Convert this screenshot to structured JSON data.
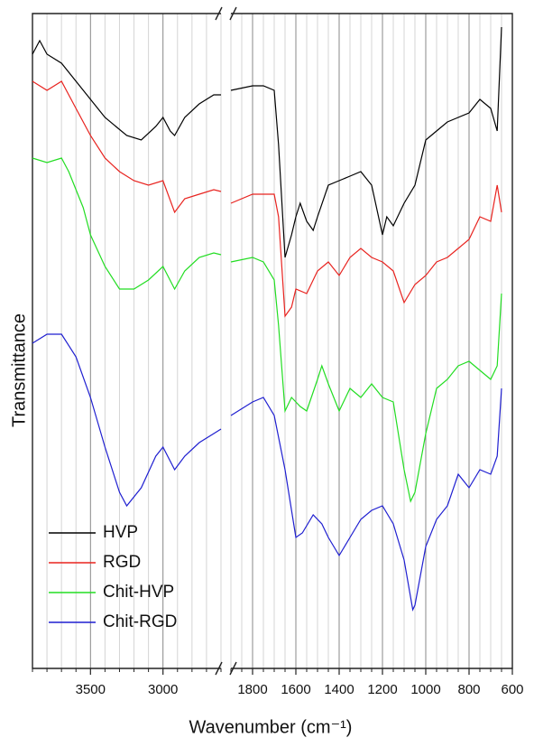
{
  "chart_data": {
    "type": "line",
    "xlabel": "Wavenumber (cm⁻¹)",
    "ylabel": "Transmittance",
    "xlim": [
      3900,
      600
    ],
    "xbreak": [
      2600,
      1900
    ],
    "ylim": [
      20,
      745
    ],
    "xticks": [
      3500,
      3000,
      1800,
      1600,
      1400,
      1200,
      1000,
      800,
      600
    ],
    "xminorticks": [
      3900,
      3800,
      3700,
      3600,
      3400,
      3300,
      3200,
      3100,
      2900,
      2800,
      2700,
      2600,
      1900,
      1850,
      1750,
      1700,
      1650,
      1550,
      1500,
      1450,
      1350,
      1300,
      1250,
      1150,
      1100,
      1050,
      950,
      900,
      850,
      750,
      700,
      650
    ],
    "grid": true,
    "legend": "lower left",
    "series": [
      {
        "name": "HVP",
        "color": "#000000",
        "x": [
          3900,
          3850,
          3800,
          3700,
          3550,
          3400,
          3250,
          3150,
          3050,
          3000,
          2950,
          2920,
          2850,
          2750,
          2650,
          2600,
          1900,
          1800,
          1750,
          1700,
          1680,
          1650,
          1620,
          1600,
          1580,
          1550,
          1520,
          1500,
          1450,
          1400,
          1350,
          1300,
          1250,
          1200,
          1180,
          1150,
          1100,
          1050,
          1000,
          950,
          900,
          850,
          800,
          750,
          700,
          670,
          650
        ],
        "values": [
          700,
          715,
          700,
          690,
          660,
          630,
          610,
          605,
          620,
          630,
          615,
          610,
          630,
          645,
          655,
          655,
          660,
          665,
          665,
          660,
          600,
          475,
          500,
          520,
          535,
          515,
          505,
          520,
          555,
          560,
          565,
          570,
          555,
          500,
          520,
          510,
          535,
          555,
          605,
          615,
          625,
          630,
          635,
          650,
          640,
          615,
          730
        ]
      },
      {
        "name": "RGD",
        "color": "#e8231f",
        "x": [
          3900,
          3800,
          3700,
          3600,
          3500,
          3400,
          3300,
          3200,
          3100,
          3000,
          2920,
          2850,
          2750,
          2650,
          2600,
          1900,
          1800,
          1700,
          1680,
          1650,
          1620,
          1600,
          1550,
          1500,
          1450,
          1400,
          1350,
          1300,
          1250,
          1200,
          1150,
          1100,
          1050,
          1000,
          950,
          900,
          850,
          800,
          750,
          700,
          670,
          650
        ],
        "values": [
          670,
          660,
          670,
          640,
          610,
          585,
          570,
          560,
          555,
          560,
          525,
          540,
          545,
          550,
          548,
          535,
          545,
          545,
          520,
          410,
          420,
          440,
          435,
          460,
          470,
          455,
          475,
          485,
          475,
          470,
          460,
          425,
          445,
          455,
          470,
          475,
          485,
          495,
          520,
          515,
          555,
          525
        ]
      },
      {
        "name": "Chit-HVP",
        "color": "#22dd22",
        "x": [
          3900,
          3800,
          3700,
          3650,
          3550,
          3500,
          3400,
          3300,
          3200,
          3100,
          3000,
          2920,
          2850,
          2750,
          2650,
          2600,
          1900,
          1800,
          1750,
          1700,
          1680,
          1650,
          1620,
          1580,
          1550,
          1500,
          1480,
          1450,
          1400,
          1350,
          1300,
          1250,
          1200,
          1150,
          1100,
          1070,
          1050,
          1000,
          950,
          900,
          850,
          800,
          750,
          700,
          670,
          650
        ],
        "values": [
          585,
          580,
          585,
          570,
          530,
          500,
          465,
          440,
          440,
          450,
          465,
          440,
          460,
          475,
          480,
          478,
          470,
          475,
          470,
          450,
          400,
          305,
          320,
          310,
          305,
          340,
          355,
          335,
          305,
          330,
          320,
          335,
          320,
          315,
          240,
          205,
          215,
          280,
          330,
          340,
          355,
          360,
          350,
          340,
          355,
          435
        ]
      },
      {
        "name": "Chit-RGD",
        "color": "#1f1fd0",
        "x": [
          3900,
          3800,
          3700,
          3600,
          3500,
          3400,
          3300,
          3250,
          3150,
          3050,
          3000,
          2920,
          2850,
          2750,
          2650,
          2600,
          1900,
          1800,
          1750,
          1700,
          1650,
          1600,
          1570,
          1520,
          1480,
          1450,
          1400,
          1350,
          1300,
          1250,
          1200,
          1150,
          1100,
          1060,
          1050,
          1000,
          950,
          900,
          850,
          800,
          750,
          700,
          670,
          650
        ],
        "values": [
          380,
          390,
          390,
          365,
          320,
          265,
          215,
          200,
          220,
          255,
          265,
          240,
          255,
          270,
          280,
          285,
          300,
          315,
          320,
          300,
          240,
          165,
          170,
          190,
          180,
          165,
          145,
          165,
          185,
          195,
          200,
          180,
          140,
          85,
          90,
          155,
          185,
          200,
          235,
          220,
          240,
          235,
          255,
          330
        ]
      }
    ]
  }
}
